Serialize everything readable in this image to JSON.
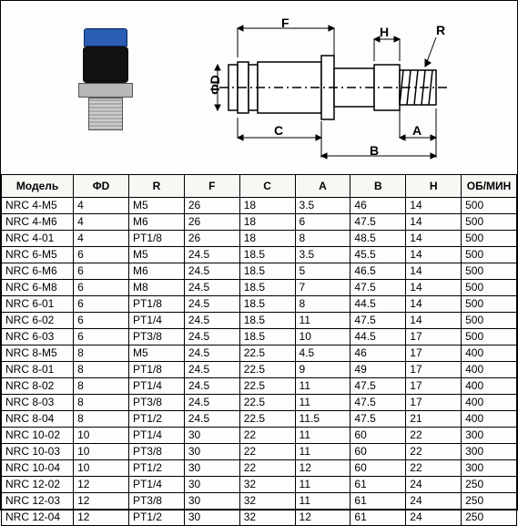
{
  "headers": {
    "model": "Модель",
    "d": "ΦD",
    "r": "R",
    "f": "F",
    "c": "C",
    "a": "A",
    "b": "B",
    "h": "H",
    "rpm": "ОБ/МИН"
  },
  "diagram": {
    "labels": {
      "F": "F",
      "H": "H",
      "R": "R",
      "D": "ΦD",
      "C": "C",
      "B": "B",
      "A": "A"
    },
    "stroke": "#000000",
    "fill_body": "#ffffff"
  },
  "photo_colors": {
    "blue": "#2b5db5",
    "black": "#111111",
    "metal": "#b8b8b8"
  },
  "rows": [
    {
      "model": "NRC 4-M5",
      "d": "4",
      "r": "M5",
      "f": "26",
      "c": "18",
      "a": "3.5",
      "b": "46",
      "h": "14",
      "rpm": "500"
    },
    {
      "model": "NRC 4-M6",
      "d": "4",
      "r": "M6",
      "f": "26",
      "c": "18",
      "a": "6",
      "b": "47.5",
      "h": "14",
      "rpm": "500"
    },
    {
      "model": "NRC 4-01",
      "d": "4",
      "r": "PT1/8",
      "f": "26",
      "c": "18",
      "a": "8",
      "b": "48.5",
      "h": "14",
      "rpm": "500"
    },
    {
      "model": "NRC 6-M5",
      "d": "6",
      "r": "M5",
      "f": "24.5",
      "c": "18.5",
      "a": "3.5",
      "b": "45.5",
      "h": "14",
      "rpm": "500"
    },
    {
      "model": "NRC 6-M6",
      "d": "6",
      "r": "M6",
      "f": "24.5",
      "c": "18.5",
      "a": "5",
      "b": "46.5",
      "h": "14",
      "rpm": "500"
    },
    {
      "model": "NRC 6-M8",
      "d": "6",
      "r": "M8",
      "f": "24.5",
      "c": "18.5",
      "a": "7",
      "b": "47.5",
      "h": "14",
      "rpm": "500"
    },
    {
      "model": "NRC 6-01",
      "d": "6",
      "r": "PT1/8",
      "f": "24.5",
      "c": "18.5",
      "a": "8",
      "b": "44.5",
      "h": "14",
      "rpm": "500"
    },
    {
      "model": "NRC 6-02",
      "d": "6",
      "r": "PT1/4",
      "f": "24.5",
      "c": "18.5",
      "a": "11",
      "b": "47.5",
      "h": "14",
      "rpm": "500"
    },
    {
      "model": "NRC 6-03",
      "d": "6",
      "r": "PT3/8",
      "f": "24.5",
      "c": "18.5",
      "a": "10",
      "b": "44.5",
      "h": "17",
      "rpm": "500"
    },
    {
      "model": "NRC 8-M5",
      "d": "8",
      "r": "M5",
      "f": "24.5",
      "c": "22.5",
      "a": "4.5",
      "b": "46",
      "h": "17",
      "rpm": "400"
    },
    {
      "model": "NRC 8-01",
      "d": "8",
      "r": "PT1/8",
      "f": "24.5",
      "c": "22.5",
      "a": "9",
      "b": "49",
      "h": "17",
      "rpm": "400"
    },
    {
      "model": "NRC 8-02",
      "d": "8",
      "r": "PT1/4",
      "f": "24.5",
      "c": "22.5",
      "a": "11",
      "b": "47.5",
      "h": "17",
      "rpm": "400"
    },
    {
      "model": "NRC 8-03",
      "d": "8",
      "r": "PT3/8",
      "f": "24.5",
      "c": "22.5",
      "a": "11",
      "b": "47.5",
      "h": "17",
      "rpm": "400"
    },
    {
      "model": "NRC 8-04",
      "d": "8",
      "r": "PT1/2",
      "f": "24.5",
      "c": "22.5",
      "a": "11.5",
      "b": "47.5",
      "h": "21",
      "rpm": "400"
    },
    {
      "model": "NRC 10-02",
      "d": "10",
      "r": "PT1/4",
      "f": "30",
      "c": "22",
      "a": "11",
      "b": "60",
      "h": "22",
      "rpm": "300"
    },
    {
      "model": "NRC 10-03",
      "d": "10",
      "r": "PT3/8",
      "f": "30",
      "c": "22",
      "a": "11",
      "b": "60",
      "h": "22",
      "rpm": "300"
    },
    {
      "model": "NRC 10-04",
      "d": "10",
      "r": "PT1/2",
      "f": "30",
      "c": "22",
      "a": "12",
      "b": "60",
      "h": "22",
      "rpm": "300"
    },
    {
      "model": "NRC 12-02",
      "d": "12",
      "r": "PT1/4",
      "f": "30",
      "c": "32",
      "a": "11",
      "b": "61",
      "h": "24",
      "rpm": "250"
    },
    {
      "model": "NRC 12-03",
      "d": "12",
      "r": "PT3/8",
      "f": "30",
      "c": "32",
      "a": "11",
      "b": "61",
      "h": "24",
      "rpm": "250"
    },
    {
      "model": "NRC 12-04",
      "d": "12",
      "r": "PT1/2",
      "f": "30",
      "c": "32",
      "a": "12",
      "b": "61",
      "h": "24",
      "rpm": "250"
    }
  ]
}
